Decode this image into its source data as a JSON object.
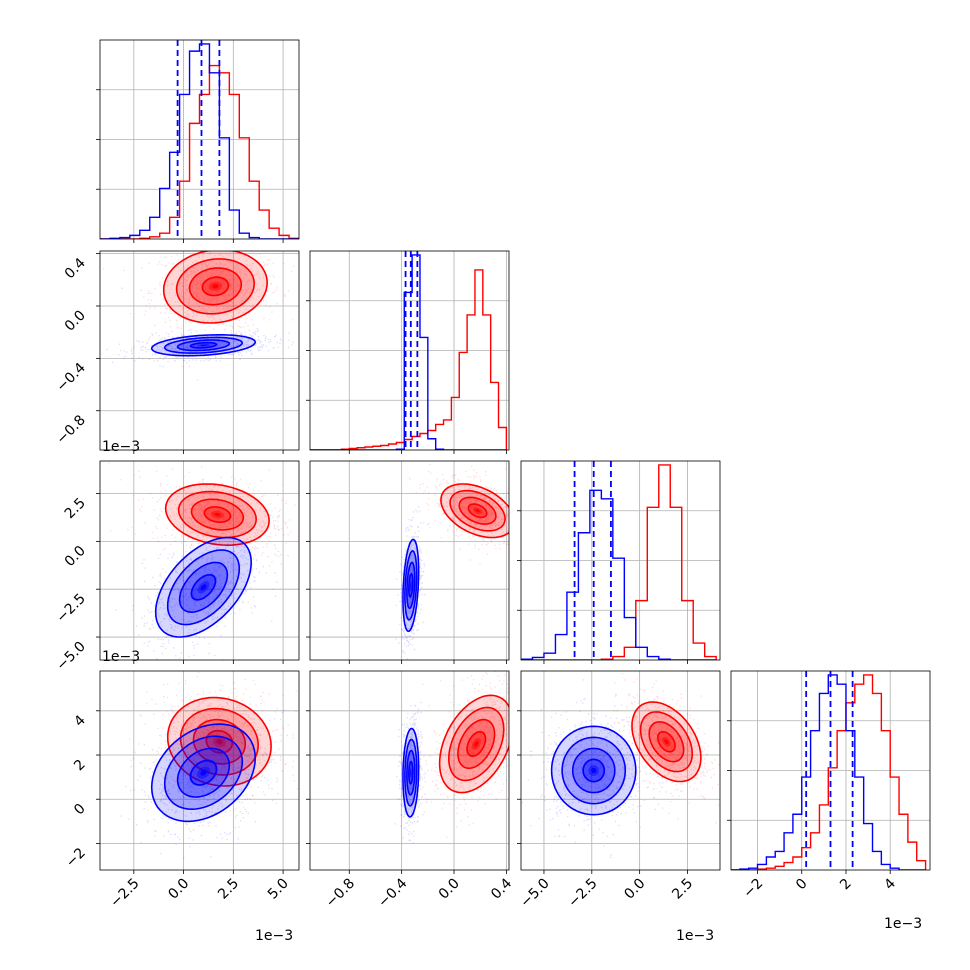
{
  "chart_data": {
    "type": "corner",
    "title": "",
    "series": [
      {
        "name": "",
        "color": "#0000ff"
      },
      {
        "name": "",
        "color": "#ff0000"
      }
    ],
    "grid": true,
    "parameters": [
      {
        "index": 0,
        "xlim": [
          -4.2,
          5.8
        ],
        "ylim_2d": null,
        "ticks": [
          -2.5,
          0.0,
          2.5,
          5.0
        ],
        "tick_labels": [
          "−2.5",
          "0.0",
          "2.5",
          "5.0"
        ],
        "exponent_label": "1e−3"
      },
      {
        "index": 1,
        "xlim": [
          -1.1,
          0.42
        ],
        "ticks": [
          -0.8,
          -0.4,
          0.0,
          0.4
        ],
        "tick_labels": [
          "−0.8",
          "−0.4",
          "0.0",
          "0.4"
        ],
        "exponent_label": "1e−3"
      },
      {
        "index": 2,
        "xlim": [
          -6.2,
          4.2
        ],
        "ticks": [
          -5.0,
          -2.5,
          0.0,
          2.5
        ],
        "tick_labels": [
          "−5.0",
          "−2.5",
          "0.0",
          "2.5"
        ],
        "exponent_label": "1e−3"
      },
      {
        "index": 3,
        "xlim": [
          -3.2,
          5.8
        ],
        "ticks": [
          -2,
          0,
          2,
          4
        ],
        "tick_labels": [
          "−2",
          "0",
          "2",
          "4"
        ],
        "exponent_label": "1e−3"
      }
    ],
    "diagonal": [
      {
        "index": 0,
        "quantiles_blue": [
          -0.3,
          0.9,
          1.8
        ],
        "edges": [
          -4.2,
          -3.7,
          -3.2,
          -2.7,
          -2.2,
          -1.7,
          -1.2,
          -0.7,
          -0.2,
          0.3,
          0.8,
          1.3,
          1.8,
          2.3,
          2.8,
          3.3,
          3.8,
          4.3,
          4.8,
          5.3,
          5.8
        ],
        "blue": [
          0,
          1,
          2,
          5,
          12,
          30,
          70,
          120,
          200,
          260,
          270,
          230,
          140,
          40,
          8,
          2,
          0,
          0,
          0,
          0
        ],
        "red": [
          0,
          0,
          0,
          0,
          1,
          3,
          8,
          30,
          80,
          160,
          200,
          240,
          230,
          200,
          140,
          80,
          40,
          15,
          5,
          1
        ]
      },
      {
        "index": 1,
        "quantiles_blue": [
          -0.37,
          -0.33,
          -0.28
        ],
        "edges": [
          -1.1,
          -1.04,
          -0.98,
          -0.92,
          -0.86,
          -0.8,
          -0.74,
          -0.68,
          -0.62,
          -0.56,
          -0.5,
          -0.44,
          -0.38,
          -0.32,
          -0.26,
          -0.2,
          -0.14,
          -0.08,
          -0.02,
          0.04,
          0.1,
          0.16,
          0.22,
          0.28,
          0.34,
          0.4
        ],
        "blue": [
          0,
          0,
          0,
          0,
          0,
          0,
          0,
          0,
          0,
          0,
          0,
          1,
          210,
          260,
          150,
          15,
          1,
          0,
          0,
          0,
          0,
          0,
          0,
          0,
          0
        ],
        "red": [
          0,
          0,
          0,
          0,
          1,
          2,
          3,
          4,
          5,
          6,
          8,
          10,
          14,
          18,
          22,
          26,
          34,
          40,
          70,
          130,
          180,
          240,
          180,
          90,
          30
        ]
      },
      {
        "index": 2,
        "quantiles_blue": [
          -3.4,
          -2.4,
          -1.5
        ],
        "edges": [
          -6.2,
          -5.6,
          -5.0,
          -4.4,
          -3.8,
          -3.2,
          -2.6,
          -2.0,
          -1.4,
          -0.8,
          -0.2,
          0.4,
          1.0,
          1.6,
          2.2,
          2.8,
          3.4,
          4.0
        ],
        "blue": [
          1,
          3,
          8,
          30,
          80,
          150,
          200,
          190,
          120,
          50,
          15,
          4,
          1,
          0,
          0,
          0,
          0
        ],
        "red": [
          0,
          0,
          0,
          0,
          0,
          0,
          0,
          1,
          4,
          15,
          70,
          180,
          230,
          180,
          70,
          20,
          4
        ]
      },
      {
        "index": 3,
        "quantiles_blue": [
          0.2,
          1.3,
          2.3
        ],
        "edges": [
          -3.2,
          -2.8,
          -2.4,
          -2.0,
          -1.6,
          -1.2,
          -0.8,
          -0.4,
          0.0,
          0.4,
          0.8,
          1.2,
          1.6,
          2.0,
          2.4,
          2.8,
          3.2,
          3.6,
          4.0,
          4.4,
          4.8,
          5.2,
          5.6
        ],
        "blue": [
          0,
          1,
          2,
          6,
          14,
          20,
          40,
          60,
          100,
          150,
          190,
          210,
          200,
          150,
          100,
          50,
          20,
          6,
          2,
          0,
          0,
          0
        ],
        "red": [
          0,
          0,
          0,
          1,
          2,
          4,
          8,
          14,
          24,
          40,
          70,
          110,
          150,
          180,
          200,
          210,
          190,
          150,
          100,
          60,
          30,
          10
        ]
      }
    ],
    "pairs": [
      {
        "x": 0,
        "y": 1,
        "ylim": [
          -1.1,
          0.42
        ],
        "ytick_labels": [
          "−0.8",
          "−0.4",
          "0.0",
          "0.4"
        ],
        "yticks": [
          -0.8,
          -0.4,
          0.0,
          0.4
        ],
        "exponent_label": "1e−3",
        "blue": {
          "mx": 1.0,
          "my": -0.3,
          "sx": 1.3,
          "sy": 0.04,
          "rho": 0.3
        },
        "red": {
          "mx": 1.6,
          "my": 0.15,
          "sx": 1.3,
          "sy": 0.14,
          "rho": 0.1
        }
      },
      {
        "x": 0,
        "y": 2,
        "ylim": [
          -6.2,
          4.2
        ],
        "ytick_labels": [
          "−5.0",
          "−2.5",
          "0.0",
          "2.5"
        ],
        "yticks": [
          -5.0,
          -2.5,
          0.0,
          2.5
        ],
        "exponent_label": "1e−3",
        "blue": {
          "mx": 1.0,
          "my": -2.4,
          "sx": 1.2,
          "sy": 1.3,
          "rho": 0.5
        },
        "red": {
          "mx": 1.7,
          "my": 1.4,
          "sx": 1.3,
          "sy": 0.8,
          "rho": -0.2
        }
      },
      {
        "x": 0,
        "y": 3,
        "ylim": [
          -3.2,
          5.8
        ],
        "ytick_labels": [
          "−2",
          "0",
          "2",
          "4"
        ],
        "yticks": [
          -2,
          0,
          2,
          4
        ],
        "exponent_label": "",
        "blue": {
          "mx": 1.0,
          "my": 1.2,
          "sx": 1.3,
          "sy": 1.1,
          "rho": 0.3
        },
        "red": {
          "mx": 1.8,
          "my": 2.6,
          "sx": 1.3,
          "sy": 1.0,
          "rho": -0.1
        }
      },
      {
        "x": 1,
        "y": 2,
        "blue": {
          "mx": -0.33,
          "my": -2.3,
          "sx": 0.03,
          "sy": 1.2,
          "rho": 0.3
        },
        "red": {
          "mx": 0.18,
          "my": 1.6,
          "sx": 0.14,
          "sy": 0.7,
          "rho": -0.4
        }
      },
      {
        "x": 1,
        "y": 3,
        "blue": {
          "mx": -0.33,
          "my": 1.2,
          "sx": 0.03,
          "sy": 1.0,
          "rho": 0.1
        },
        "red": {
          "mx": 0.17,
          "my": 2.5,
          "sx": 0.14,
          "sy": 1.1,
          "rho": 0.4
        }
      },
      {
        "x": 2,
        "y": 3,
        "blue": {
          "mx": -2.4,
          "my": 1.3,
          "sx": 1.1,
          "sy": 1.0,
          "rho": 0.0
        },
        "red": {
          "mx": 1.4,
          "my": 2.6,
          "sx": 0.9,
          "sy": 0.9,
          "rho": -0.4
        }
      }
    ]
  }
}
